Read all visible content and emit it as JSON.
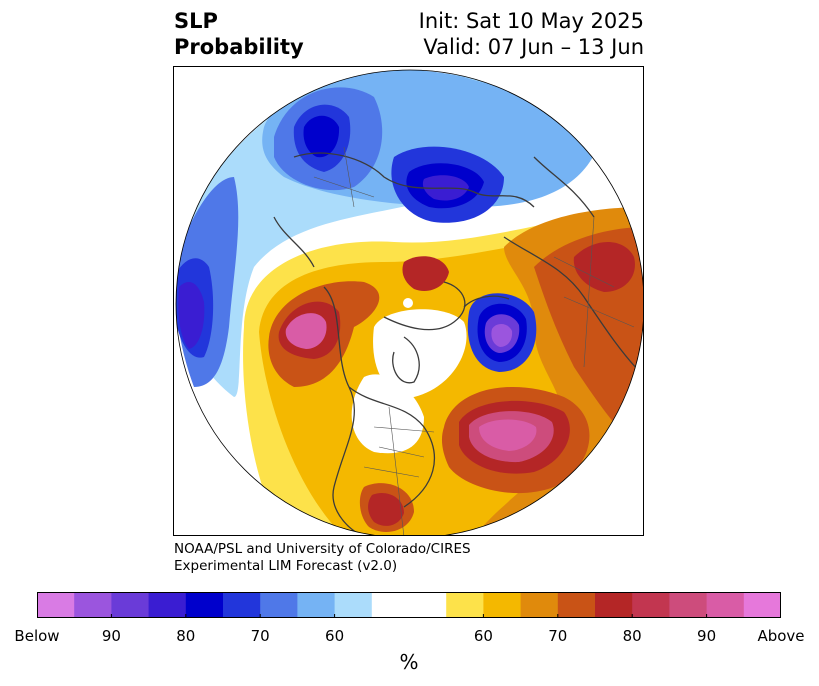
{
  "header": {
    "variable": "SLP",
    "product": "Probability",
    "init": "Init: Sat 10 May 2025",
    "valid": "Valid: 07 Jun – 13 Jun"
  },
  "credit": {
    "line1": "NOAA/PSL and University of Colorado/CIRES",
    "line2": "Experimental LIM Forecast (v2.0)"
  },
  "colorbar": {
    "colors": [
      "#d97be4",
      "#9b55de",
      "#6a3bd8",
      "#3a1dd2",
      "#0000cc",
      "#2236db",
      "#4f78e8",
      "#75b3f4",
      "#abdcfb",
      "#ffffff",
      "#ffffff",
      "#fde24a",
      "#f4b800",
      "#e08a0c",
      "#c95316",
      "#b42626",
      "#c23650",
      "#cd4c7c",
      "#d95ca6",
      "#e678db"
    ],
    "tick_labels": [
      "Below",
      "90",
      "80",
      "70",
      "60",
      "60",
      "70",
      "80",
      "90",
      "Above"
    ],
    "unit": "%"
  }
}
